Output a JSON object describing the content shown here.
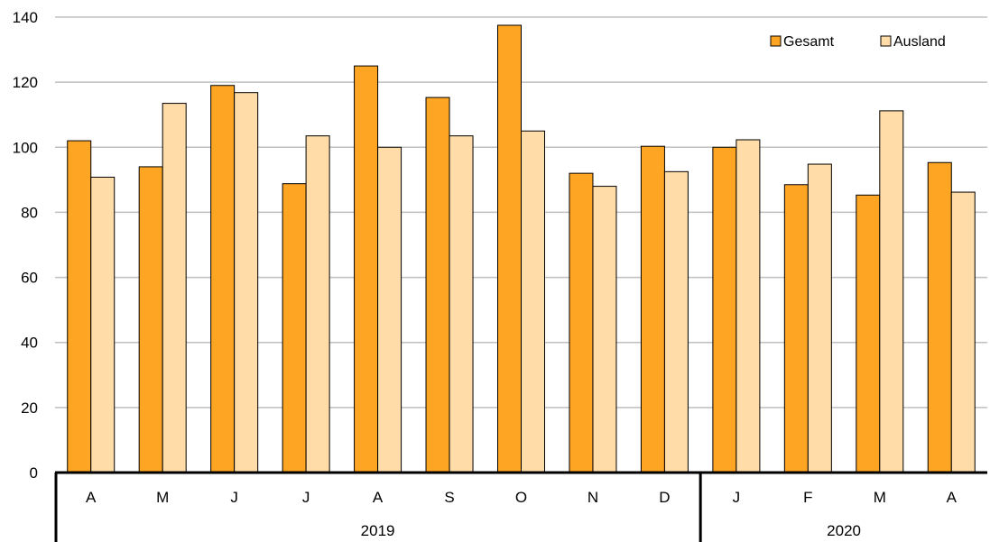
{
  "chart_data": {
    "type": "bar",
    "categories": [
      "A",
      "M",
      "J",
      "J",
      "A",
      "S",
      "O",
      "N",
      "D",
      "J",
      "F",
      "M",
      "A"
    ],
    "groups": [
      {
        "label": "2019",
        "count": 9
      },
      {
        "label": "2020",
        "count": 4
      }
    ],
    "series": [
      {
        "name": "Gesamt",
        "color": "#FFA524",
        "values": [
          102,
          94,
          119,
          88.8,
          125,
          115.3,
          137.5,
          92,
          100.3,
          100,
          88.5,
          85.3,
          95.3
        ]
      },
      {
        "name": "Ausland",
        "color": "#FFDCA8",
        "values": [
          90.8,
          113.5,
          116.8,
          103.5,
          100,
          103.5,
          105,
          88,
          92.5,
          102.3,
          94.8,
          111.2,
          86.2
        ]
      }
    ],
    "ylim": [
      0,
      140
    ],
    "yticks": [
      0,
      20,
      40,
      60,
      80,
      100,
      120,
      140
    ],
    "grid": true,
    "legend_position": "top-right"
  }
}
